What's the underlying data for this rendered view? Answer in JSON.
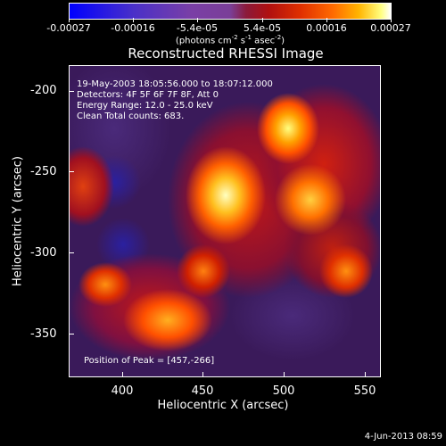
{
  "colorbar": {
    "tick_labels": [
      "-0.00027",
      "-0.00016",
      "-5.4e-05",
      "5.4e-05",
      "0.00016",
      "0.00027"
    ],
    "unit_label": "(photons cm",
    "unit_sup1": "-2",
    "unit_mid": " s",
    "unit_sup2": "-1",
    "unit_end": " asec",
    "unit_sup3": "-2",
    "unit_close": ")"
  },
  "title": "Reconstructed RHESSI Image",
  "info": {
    "line1": "19-May-2003 18:05:56.000 to 18:07:12.000",
    "line2": "Detectors: 4F 5F 6F 7F 8F, Att 0",
    "line3": "Energy Range: 12.0 - 25.0 keV",
    "line4": "Clean    Total counts: 683.",
    "peak": "Position of Peak = [457,-266]"
  },
  "axes": {
    "xlabel": "Heliocentric X (arcsec)",
    "ylabel": "Heliocentric Y (arcsec)",
    "xticks": [
      "400",
      "450",
      "500",
      "550"
    ],
    "yticks": [
      "-200",
      "-250",
      "-300",
      "-350"
    ]
  },
  "footer": {
    "date": "4-Jun-2013 08:59"
  },
  "colors": {
    "background": "#000000",
    "plot_bg": "#3a1a5a",
    "text": "#ffffff"
  }
}
